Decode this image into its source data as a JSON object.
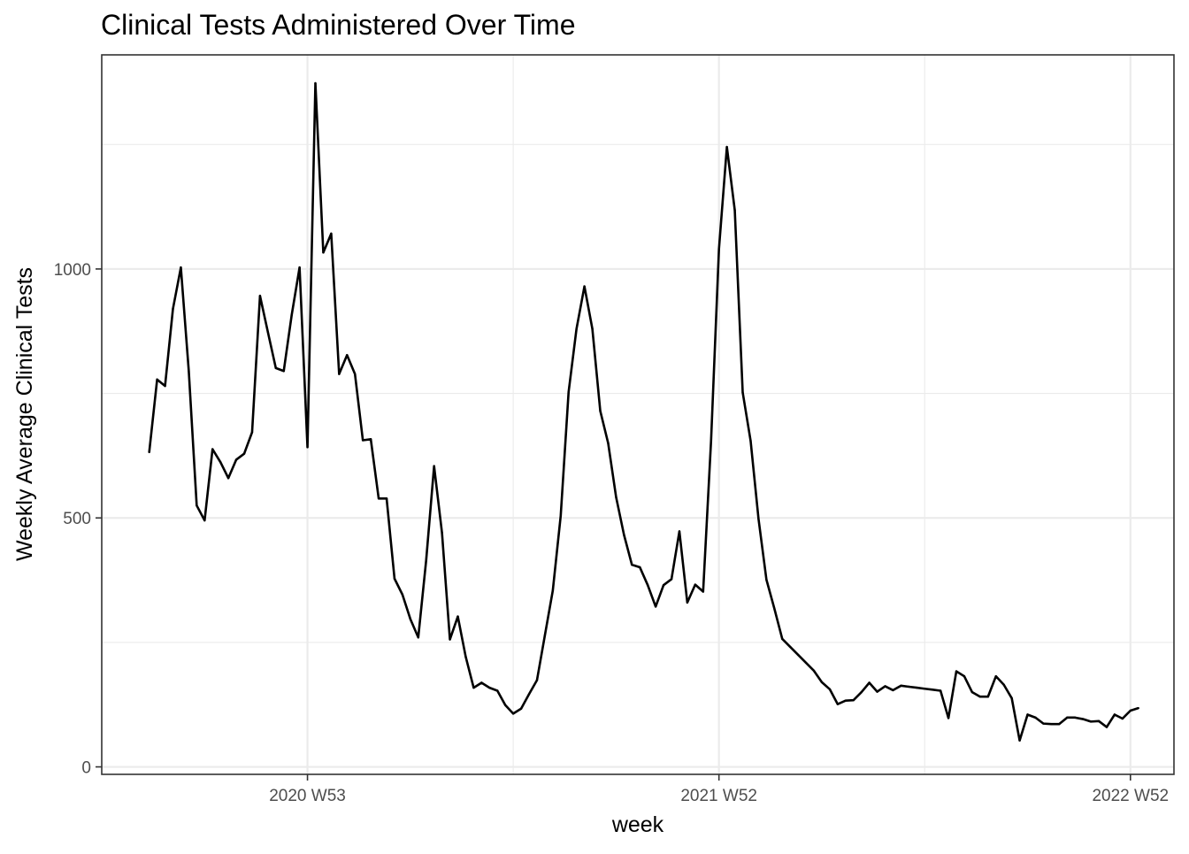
{
  "chart_data": {
    "type": "line",
    "title": "Clinical Tests Administered Over Time",
    "xlabel": "week",
    "ylabel": "Weekly Average Clinical Tests",
    "x_ticks": [
      {
        "label": "2020 W53",
        "week_index": 20
      },
      {
        "label": "2021 W52",
        "week_index": 72
      },
      {
        "label": "2022 W52",
        "week_index": 124
      }
    ],
    "y_ticks": [
      0,
      500,
      1000
    ],
    "ylim": [
      -15,
      1430
    ],
    "xlim": [
      -6,
      129.5
    ],
    "grid": true,
    "series": [
      {
        "color": "#000000",
        "values": [
          632,
          778,
          765,
          920,
          1003,
          795,
          525,
          495,
          638,
          612,
          580,
          617,
          629,
          672,
          946,
          873,
          801,
          795,
          907,
          1003,
          642,
          1373,
          1033,
          1071,
          789,
          827,
          789,
          656,
          658,
          539,
          539,
          378,
          346,
          297,
          260,
          415,
          604,
          470,
          256,
          302,
          221,
          159,
          169,
          159,
          153,
          124,
          107,
          117,
          146,
          174,
          264,
          354,
          504,
          753,
          880,
          965,
          880,
          715,
          650,
          542,
          466,
          406,
          401,
          365,
          322,
          365,
          377,
          473,
          330,
          366,
          352,
          654,
          1040,
          1245,
          1118,
          752,
          655,
          498,
          376,
          318,
          257,
          241,
          225,
          209,
          193,
          170,
          156,
          126,
          133,
          134,
          150,
          169,
          151,
          162,
          154,
          163,
          161,
          159,
          157,
          155,
          153,
          98,
          192,
          182,
          150,
          141,
          141,
          182,
          165,
          138,
          53,
          105,
          99,
          87,
          86,
          86,
          99,
          99,
          96,
          91,
          92,
          80,
          105,
          97,
          113,
          118
        ]
      }
    ]
  }
}
